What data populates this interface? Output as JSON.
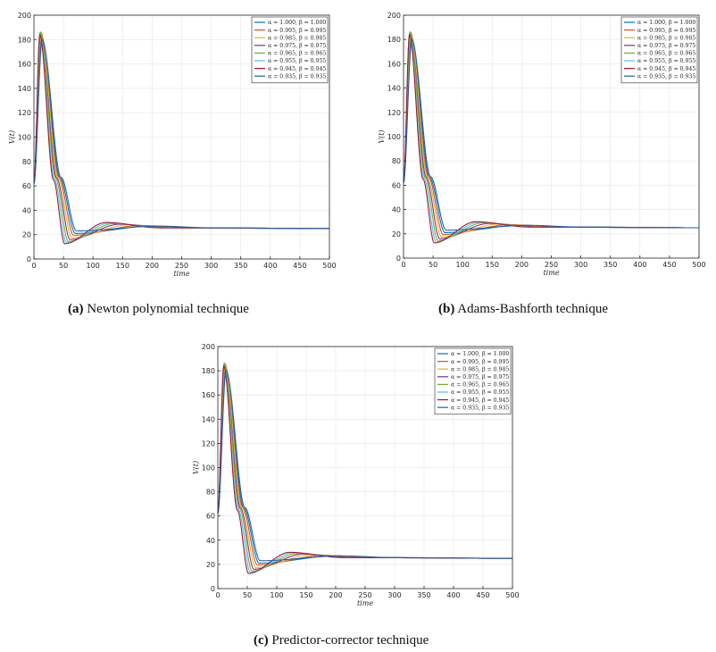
{
  "chart_data": [
    {
      "id": "a",
      "type": "line",
      "caption_tag": "(a)",
      "caption_text": "Newton polynomial technique",
      "xlabel": "time",
      "ylabel": "V(t)",
      "xlim": [
        0,
        500
      ],
      "ylim": [
        0,
        200
      ],
      "xticks": [
        0,
        50,
        100,
        150,
        200,
        250,
        300,
        350,
        400,
        450,
        500
      ],
      "yticks": [
        0,
        20,
        40,
        60,
        80,
        100,
        120,
        140,
        160,
        180,
        200
      ],
      "grid": true,
      "legend_position": "top-right",
      "peak_scale": 1.0
    },
    {
      "id": "b",
      "type": "line",
      "caption_tag": "(b)",
      "caption_text": "Adams-Bashforth technique",
      "xlabel": "time",
      "ylabel": "V(t)",
      "xlim": [
        0,
        500
      ],
      "ylim": [
        0,
        200
      ],
      "xticks": [
        0,
        50,
        100,
        150,
        200,
        250,
        300,
        350,
        400,
        450,
        500
      ],
      "yticks": [
        0,
        20,
        40,
        60,
        80,
        100,
        120,
        140,
        160,
        180,
        200
      ],
      "grid": true,
      "legend_position": "top-right",
      "peak_scale": 1.0
    },
    {
      "id": "c",
      "type": "line",
      "caption_tag": "(c)",
      "caption_text": "Predictor-corrector technique",
      "xlabel": "time",
      "ylabel": "V(t)",
      "xlim": [
        0,
        500
      ],
      "ylim": [
        0,
        200
      ],
      "xticks": [
        0,
        50,
        100,
        150,
        200,
        250,
        300,
        350,
        400,
        450,
        500
      ],
      "yticks": [
        0,
        20,
        40,
        60,
        80,
        100,
        120,
        140,
        160,
        180,
        200
      ],
      "grid": true,
      "legend_position": "top-right",
      "peak_scale": 1.0
    }
  ],
  "series": [
    {
      "name": "α = 1.000, β = 1.000",
      "color": "#0072bd",
      "peak_t": 13,
      "peak_v": 180,
      "trough_t": 70,
      "trough_v": 21,
      "bump_t": 200,
      "bump_v": 27,
      "final_v": 25
    },
    {
      "name": "α = 0.995, β = 0.995",
      "color": "#d95319",
      "peak_t": 12,
      "peak_v": 184,
      "trough_t": 67,
      "trough_v": 19.5,
      "bump_t": 180,
      "bump_v": 27.5,
      "final_v": 25
    },
    {
      "name": "α = 0.985, β = 0.985",
      "color": "#edb120",
      "peak_t": 12,
      "peak_v": 186,
      "trough_t": 64,
      "trough_v": 17.5,
      "bump_t": 160,
      "bump_v": 28,
      "final_v": 25
    },
    {
      "name": "α = 0.975, β = 0.975",
      "color": "#7e2f8e",
      "peak_t": 11,
      "peak_v": 186,
      "trough_t": 61,
      "trough_v": 16,
      "bump_t": 145,
      "bump_v": 28.5,
      "final_v": 25
    },
    {
      "name": "α = 0.965, β = 0.965",
      "color": "#77ac30",
      "peak_t": 11,
      "peak_v": 186,
      "trough_t": 58,
      "trough_v": 14.5,
      "bump_t": 135,
      "bump_v": 29,
      "final_v": 25
    },
    {
      "name": "α = 0.955, β = 0.955",
      "color": "#4dbeee",
      "peak_t": 10,
      "peak_v": 185,
      "trough_t": 55,
      "trough_v": 13.5,
      "bump_t": 128,
      "bump_v": 29.5,
      "final_v": 25
    },
    {
      "name": "α = 0.945, β = 0.945",
      "color": "#a2142f",
      "peak_t": 10,
      "peak_v": 184,
      "trough_t": 52,
      "trough_v": 12.5,
      "bump_t": 122,
      "bump_v": 30,
      "final_v": 25
    },
    {
      "name": "α = 0.935, β = 0.935",
      "color": "#1f5fa8",
      "peak_t": 14,
      "peak_v": 180,
      "trough_t": 72,
      "trough_v": 23,
      "bump_t": 210,
      "bump_v": 27,
      "final_v": 25
    }
  ]
}
